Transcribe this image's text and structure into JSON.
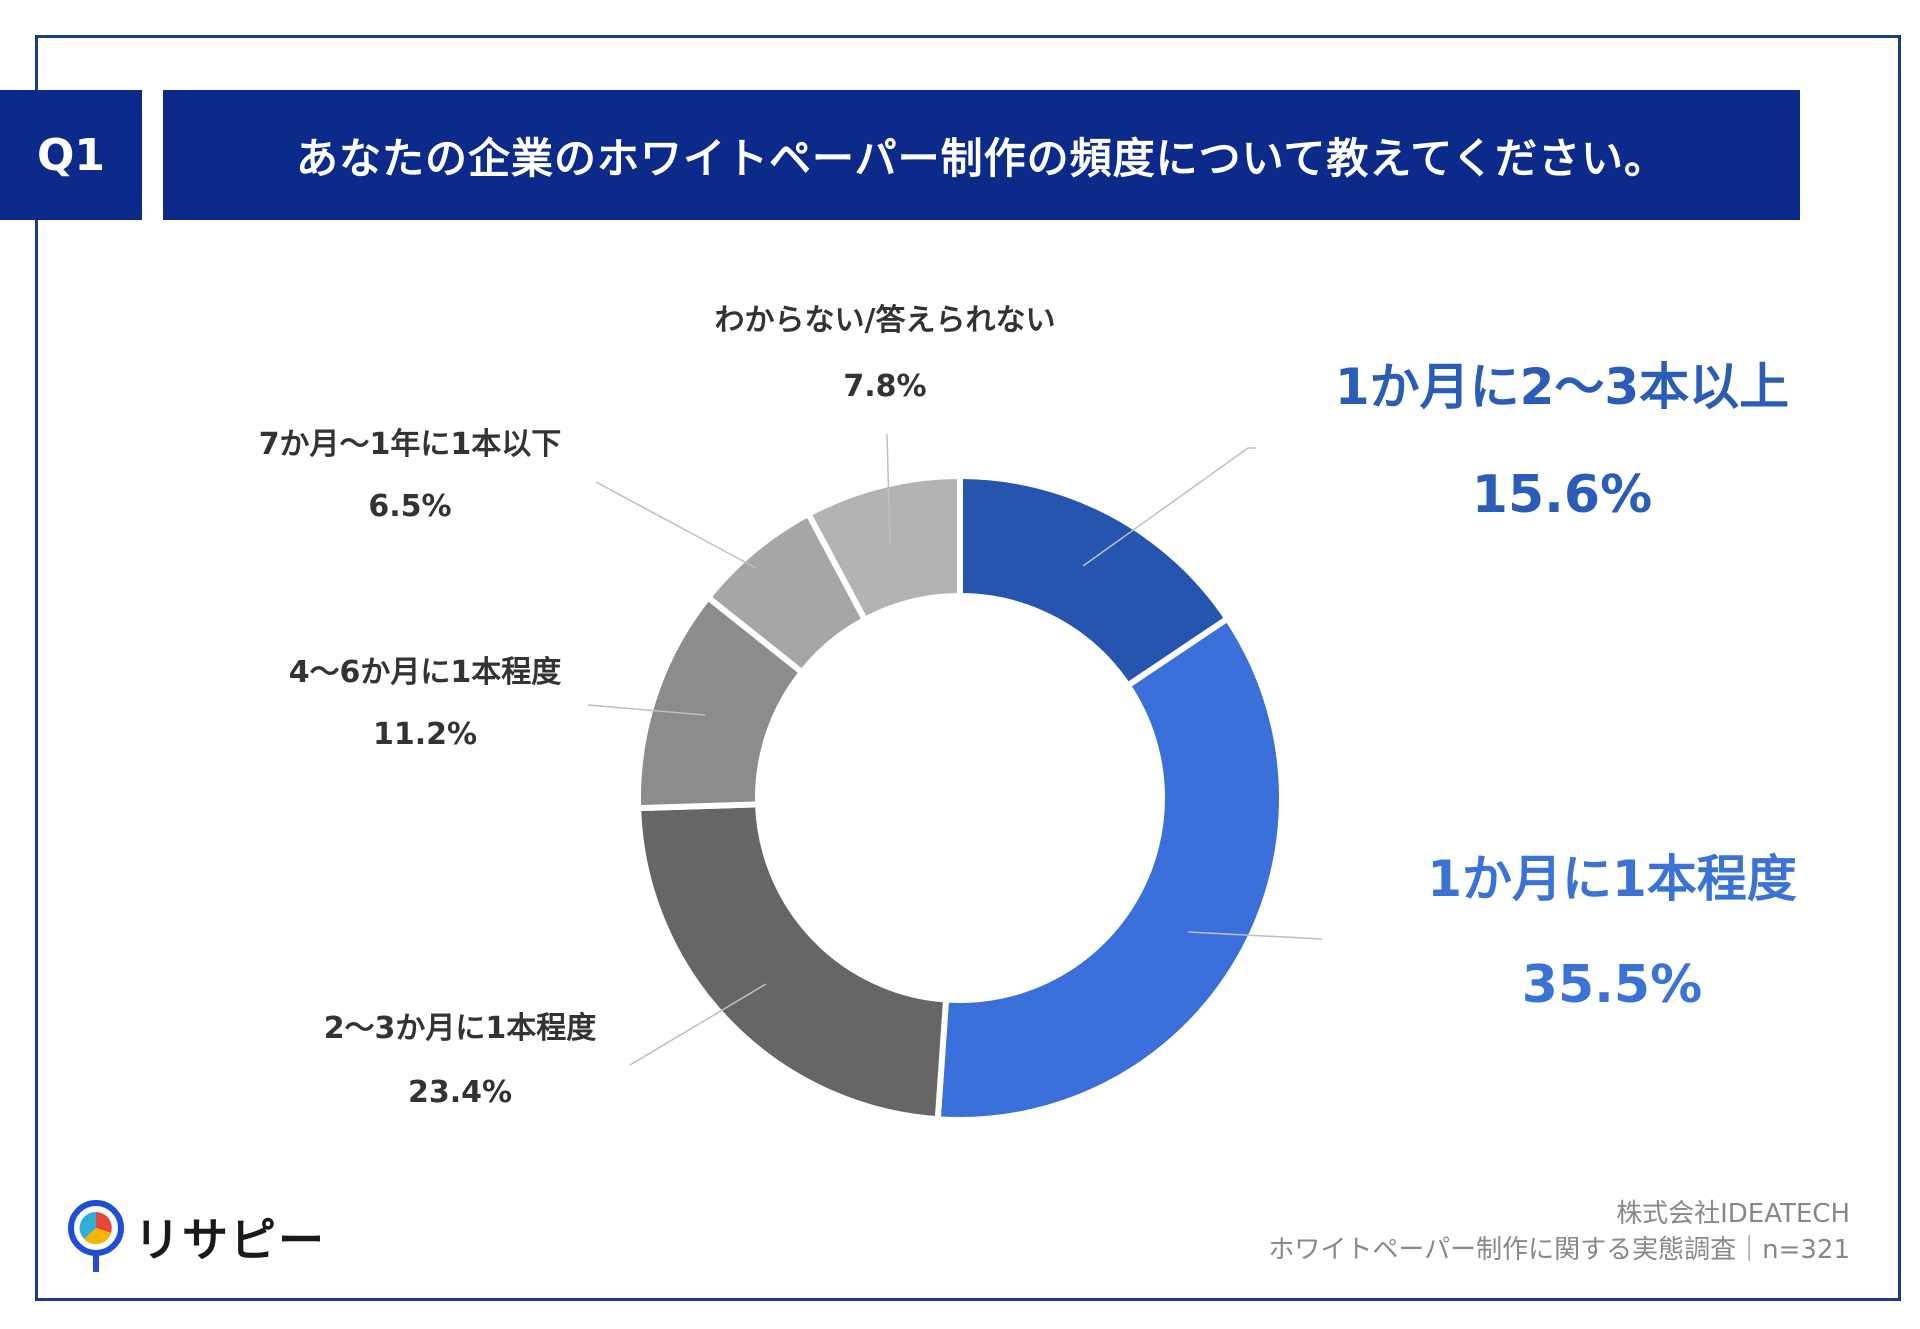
{
  "header": {
    "question": "Q1",
    "title": "あなたの企業のホワイトペーパー制作の頻度について教えてください。"
  },
  "chart_data": {
    "type": "pie",
    "donut": true,
    "title": "あなたの企業のホワイトペーパー制作の頻度について教えてください。",
    "categories": [
      "1か月に2〜3本以上",
      "1か月に1本程度",
      "2〜3か月に1本程度",
      "4〜6か月に1本程度",
      "7か月〜1年に1本以下",
      "わからない/答えられない"
    ],
    "values": [
      15.6,
      35.5,
      23.4,
      11.2,
      6.5,
      7.8
    ],
    "value_labels": [
      "15.6%",
      "35.5%",
      "23.4%",
      "11.2%",
      "6.5%",
      "7.8%"
    ],
    "colors": [
      "#2655b0",
      "#3b6fd9",
      "#666666",
      "#8c8c8c",
      "#a6a6a6",
      "#b3b3b3"
    ],
    "label_colors": [
      "#2a5cb8",
      "#3b72d6",
      "#333333",
      "#333333",
      "#333333",
      "#333333"
    ]
  },
  "logo": {
    "text": "リサピー"
  },
  "footer": {
    "company": "株式会社IDEATECH",
    "survey": "ホワイトペーパー制作に関する実態調査｜n=321"
  }
}
